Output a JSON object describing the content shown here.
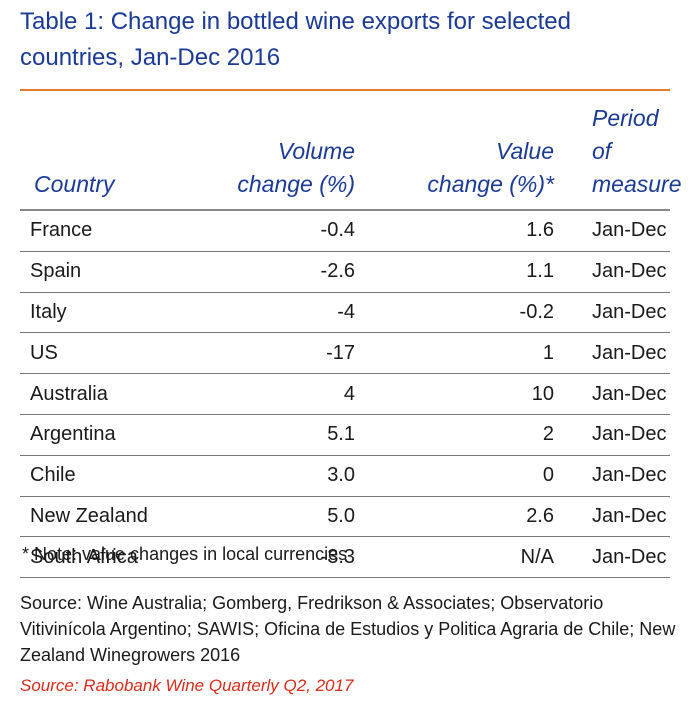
{
  "title": "Table 1: Change in bottled wine exports for selected countries, Jan-Dec 2016",
  "colors": {
    "title": "#1b3a96",
    "accent_rule": "#e87a2a",
    "source_highlight": "#d92b1b"
  },
  "table": {
    "headers": {
      "country": "Country",
      "volume_line1": "Volume",
      "volume_line2": "change (%)",
      "value_line1": "Value",
      "value_line2": "change (%)*",
      "period_line1": "Period of",
      "period_line2": "measure"
    },
    "rows": [
      {
        "country": "France",
        "volume": "-0.4",
        "value": "1.6",
        "period": "Jan-Dec"
      },
      {
        "country": "Spain",
        "volume": "-2.6",
        "value": "1.1",
        "period": "Jan-Dec"
      },
      {
        "country": "Italy",
        "volume": "-4",
        "value": "-0.2",
        "period": "Jan-Dec"
      },
      {
        "country": "US",
        "volume": "-17",
        "value": "1",
        "period": "Jan-Dec"
      },
      {
        "country": "Australia",
        "volume": "4",
        "value": "10",
        "period": "Jan-Dec"
      },
      {
        "country": "Argentina",
        "volume": "5.1",
        "value": "2",
        "period": "Jan-Dec"
      },
      {
        "country": "Chile",
        "volume": "3.0",
        "value": "0",
        "period": "Jan-Dec"
      },
      {
        "country": "New Zealand",
        "volume": "5.0",
        "value": "2.6",
        "period": "Jan-Dec"
      },
      {
        "country": "South Africa",
        "volume": "-3.3",
        "value": "N/A",
        "period": "Jan-Dec"
      }
    ]
  },
  "note": "* Note: value changes in local currencies",
  "source": "Source: Wine Australia; Gomberg, Fredrikson & Associates; Observatorio Vitivinícola Argentino; SAWIS; Oficina de Estudios y Politica Agraria de Chile; New Zealand Winegrowers 2016",
  "source2": "Source: Rabobank Wine Quarterly Q2, 2017"
}
